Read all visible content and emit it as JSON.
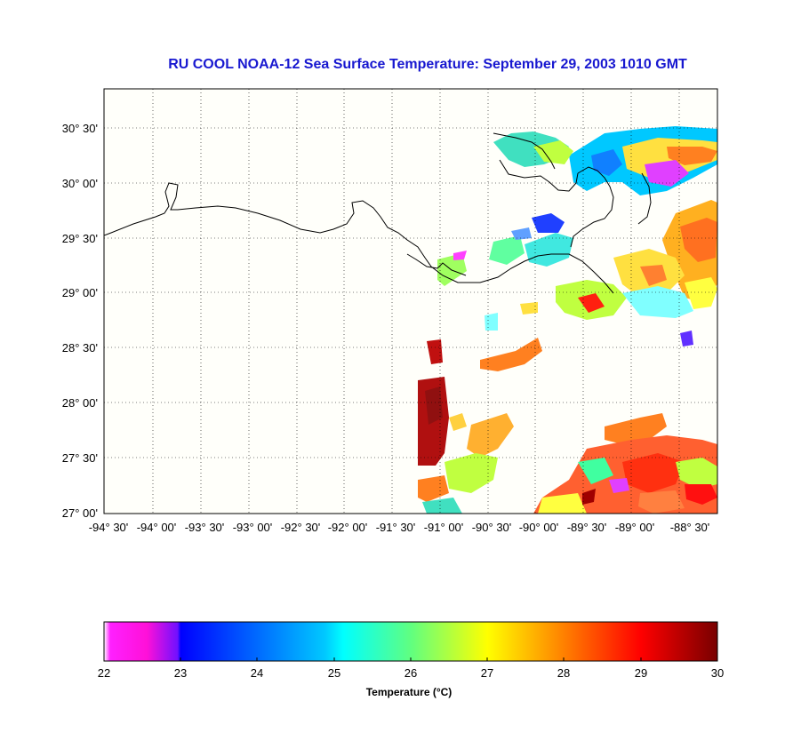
{
  "title": "RU COOL  NOAA-12  Sea Surface Temperature:  September 29, 2003 1010 GMT",
  "map": {
    "lat_ticks": [
      "30° 30'",
      "30° 00'",
      "29° 30'",
      "29° 00'",
      "28° 30'",
      "28° 00'",
      "27° 30'",
      "27° 00'"
    ],
    "lat_values": [
      30.5,
      30.0,
      29.5,
      29.0,
      28.5,
      28.0,
      27.5,
      27.0
    ],
    "lon_ticks": [
      "-94° 30'",
      "-94° 00'",
      "-93° 30'",
      "-93° 00'",
      "-92° 30'",
      "-92° 00'",
      "-91° 30'",
      "-91° 00'",
      "-90° 30'",
      "-90° 00'",
      "-89° 30'",
      "-89° 00'",
      "-88° 30'"
    ],
    "lon_values": [
      -94.5,
      -94.0,
      -93.5,
      -93.0,
      -92.5,
      -92.0,
      -91.5,
      -91.0,
      -90.5,
      -90.0,
      -89.5,
      -89.0,
      -88.5
    ],
    "lon_range": [
      -94.5,
      -88.3
    ],
    "lat_range": [
      26.95,
      30.85
    ],
    "grid": true,
    "background": "#fffffa"
  },
  "colorbar": {
    "title": "Temperature (°C)",
    "labels": [
      "22",
      "23",
      "24",
      "25",
      "26",
      "27",
      "28",
      "29",
      "30"
    ],
    "min": 22,
    "max": 30,
    "colors": [
      "#ffffff",
      "#ff00ff",
      "#0000ff",
      "#00ffff",
      "#ffff00",
      "#ff0000",
      "#800000"
    ]
  }
}
